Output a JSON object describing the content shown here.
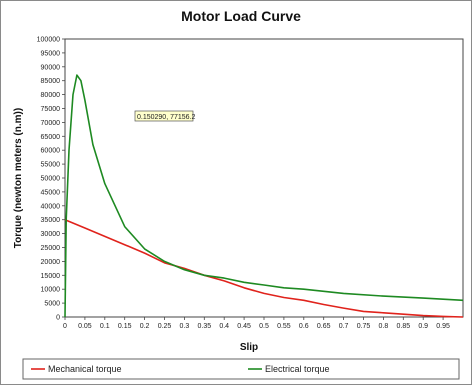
{
  "chart_data": {
    "type": "line",
    "title": "Motor Load Curve",
    "xlabel": "Slip",
    "ylabel": "Torque (newton meters (n.m))",
    "xlim": [
      0,
      1.0
    ],
    "ylim": [
      0,
      100000
    ],
    "x_ticks": [
      "0",
      "0.05",
      "0.1",
      "0.15",
      "0.2",
      "0.25",
      "0.3",
      "0.35",
      "0.4",
      "0.45",
      "0.5",
      "0.55",
      "0.6",
      "0.65",
      "0.7",
      "0.75",
      "0.8",
      "0.85",
      "0.9",
      "0.95"
    ],
    "y_ticks": [
      "0",
      "5000",
      "10000",
      "15000",
      "20000",
      "25000",
      "30000",
      "35000",
      "40000",
      "45000",
      "50000",
      "55000",
      "60000",
      "65000",
      "70000",
      "75000",
      "80000",
      "85000",
      "90000",
      "95000",
      "100000"
    ],
    "grid": false,
    "legend_position": "bottom",
    "annotation": {
      "text": "0.150290, 77156.2"
    },
    "series": [
      {
        "name": "Mechanical torque",
        "color": "#e0231c",
        "x": [
          0,
          0.05,
          0.1,
          0.15,
          0.2,
          0.25,
          0.3,
          0.35,
          0.4,
          0.45,
          0.5,
          0.55,
          0.6,
          0.65,
          0.7,
          0.75,
          0.8,
          0.85,
          0.9,
          0.95,
          1.0
        ],
        "y": [
          35000,
          32000,
          29000,
          26000,
          23000,
          19500,
          17500,
          15000,
          13000,
          10500,
          8500,
          7000,
          6000,
          4500,
          3200,
          2000,
          1500,
          1000,
          500,
          200,
          0
        ]
      },
      {
        "name": "Electrical torque",
        "color": "#1e8a22",
        "x": [
          0,
          0.003,
          0.01,
          0.02,
          0.03,
          0.04,
          0.05,
          0.07,
          0.1,
          0.15,
          0.2,
          0.25,
          0.3,
          0.35,
          0.4,
          0.45,
          0.5,
          0.55,
          0.6,
          0.7,
          0.8,
          0.9,
          1.0
        ],
        "y": [
          0,
          35000,
          60000,
          80000,
          87000,
          85000,
          78000,
          62000,
          48000,
          32500,
          24500,
          20000,
          17000,
          15000,
          14000,
          12500,
          11500,
          10500,
          10000,
          8500,
          7500,
          6800,
          6000
        ]
      }
    ]
  }
}
